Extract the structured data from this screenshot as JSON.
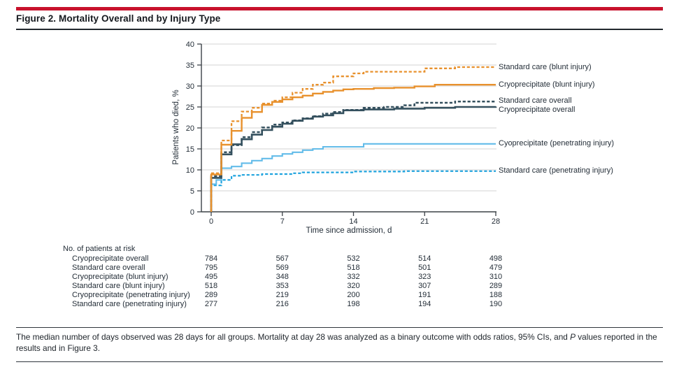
{
  "figure": {
    "title": "Figure 2. Mortality Overall and by Injury Type"
  },
  "chart_data": {
    "type": "line",
    "step": true,
    "title": "",
    "xlabel": "Time since admission, d",
    "ylabel": "Patients who died, %",
    "xlim": [
      0,
      28
    ],
    "ylim": [
      0,
      40
    ],
    "xticks": [
      0,
      7,
      14,
      21,
      28
    ],
    "yticks": [
      0,
      5,
      10,
      15,
      20,
      25,
      30,
      35,
      40
    ],
    "grid": "horizontal",
    "legend_position": "right-of-line-ends",
    "series": [
      {
        "name": "Standard care (blunt injury)",
        "color": "#e8912d",
        "dash": true,
        "label_dy": 0,
        "points": [
          [
            0,
            9.2
          ],
          [
            1,
            17.0
          ],
          [
            2,
            21.6
          ],
          [
            3,
            23.9
          ],
          [
            4,
            24.8
          ],
          [
            5,
            25.8
          ],
          [
            6,
            26.5
          ],
          [
            7,
            27.3
          ],
          [
            8,
            28.4
          ],
          [
            9,
            29.3
          ],
          [
            10,
            30.3
          ],
          [
            11,
            30.8
          ],
          [
            12,
            32.3
          ],
          [
            14,
            33.0
          ],
          [
            15,
            33.4
          ],
          [
            21,
            34.2
          ],
          [
            24,
            34.5
          ],
          [
            28,
            34.5
          ]
        ]
      },
      {
        "name": "Cryoprecipitate (blunt injury)",
        "color": "#e8912d",
        "dash": false,
        "label_dy": 0,
        "points": [
          [
            0,
            8.9
          ],
          [
            1,
            16.0
          ],
          [
            2,
            19.3
          ],
          [
            3,
            22.4
          ],
          [
            4,
            23.8
          ],
          [
            5,
            25.5
          ],
          [
            6,
            26.2
          ],
          [
            7,
            26.8
          ],
          [
            8,
            27.3
          ],
          [
            9,
            27.7
          ],
          [
            10,
            28.2
          ],
          [
            11,
            28.6
          ],
          [
            12,
            28.9
          ],
          [
            13,
            29.2
          ],
          [
            14,
            29.3
          ],
          [
            16,
            29.5
          ],
          [
            18,
            29.6
          ],
          [
            20,
            29.9
          ],
          [
            22,
            30.3
          ],
          [
            28,
            30.3
          ]
        ]
      },
      {
        "name": "Standard care overall",
        "color": "#34505e",
        "dash": true,
        "label_dy": -1,
        "points": [
          [
            0,
            8.5
          ],
          [
            1,
            14.2
          ],
          [
            2,
            15.9
          ],
          [
            3,
            17.8
          ],
          [
            4,
            19.0
          ],
          [
            5,
            20.1
          ],
          [
            6,
            20.8
          ],
          [
            7,
            21.3
          ],
          [
            8,
            21.8
          ],
          [
            9,
            22.3
          ],
          [
            10,
            22.8
          ],
          [
            11,
            23.4
          ],
          [
            12,
            23.8
          ],
          [
            13,
            24.3
          ],
          [
            15,
            24.8
          ],
          [
            17,
            25.0
          ],
          [
            19,
            25.4
          ],
          [
            20,
            26.0
          ],
          [
            24,
            26.3
          ],
          [
            28,
            26.3
          ]
        ]
      },
      {
        "name": "Cryoprecipitate overall",
        "color": "#34505e",
        "dash": false,
        "label_dy": 5,
        "points": [
          [
            0,
            8.1
          ],
          [
            1,
            13.7
          ],
          [
            2,
            16.1
          ],
          [
            3,
            17.3
          ],
          [
            4,
            18.4
          ],
          [
            5,
            19.5
          ],
          [
            6,
            20.3
          ],
          [
            7,
            21.0
          ],
          [
            8,
            21.7
          ],
          [
            9,
            22.2
          ],
          [
            10,
            22.7
          ],
          [
            11,
            23.0
          ],
          [
            12,
            23.5
          ],
          [
            13,
            24.2
          ],
          [
            15,
            24.4
          ],
          [
            18,
            24.6
          ],
          [
            21,
            24.8
          ],
          [
            24,
            25.0
          ],
          [
            28,
            25.1
          ]
        ]
      },
      {
        "name": "Cyoprecipitate (penetrating injury)",
        "color": "#63bce9",
        "dash": false,
        "label_dy": 0,
        "points": [
          [
            0,
            6.6
          ],
          [
            0.5,
            7.6
          ],
          [
            1,
            10.4
          ],
          [
            2,
            10.8
          ],
          [
            3,
            11.6
          ],
          [
            4,
            12.2
          ],
          [
            5,
            12.7
          ],
          [
            6,
            13.3
          ],
          [
            7,
            13.8
          ],
          [
            8,
            14.2
          ],
          [
            9,
            14.7
          ],
          [
            10,
            15.0
          ],
          [
            11,
            15.5
          ],
          [
            15,
            16.2
          ],
          [
            28,
            16.2
          ]
        ]
      },
      {
        "name": "Standard care (penetrating injury)",
        "color": "#1fa3de",
        "dash": true,
        "label_dy": 0,
        "points": [
          [
            0,
            6.3
          ],
          [
            1,
            7.6
          ],
          [
            2,
            8.6
          ],
          [
            3,
            8.8
          ],
          [
            5,
            9.0
          ],
          [
            8,
            9.2
          ],
          [
            9,
            9.4
          ],
          [
            14,
            9.6
          ],
          [
            19,
            9.7
          ],
          [
            28,
            9.7
          ]
        ]
      }
    ]
  },
  "at_risk": {
    "title": "No. of patients at risk",
    "days": [
      0,
      7,
      14,
      21,
      28
    ],
    "rows": [
      {
        "label": "Cryoprecipitate overall",
        "values": [
          "784",
          "567",
          "532",
          "514",
          "498"
        ]
      },
      {
        "label": "Standard care overall",
        "values": [
          "795",
          "569",
          "518",
          "501",
          "479"
        ]
      },
      {
        "label": "Cryoprecipitate (blunt injury)",
        "values": [
          "495",
          "348",
          "332",
          "323",
          "310"
        ]
      },
      {
        "label": "Standard care (blunt injury)",
        "values": [
          "518",
          "353",
          "320",
          "307",
          "289"
        ]
      },
      {
        "label": "Cryoprecipitate (penetrating injury)",
        "values": [
          "289",
          "219",
          "200",
          "191",
          "188"
        ]
      },
      {
        "label": "Standard care (penetrating injury)",
        "values": [
          "277",
          "216",
          "198",
          "194",
          "190"
        ]
      }
    ]
  },
  "footnote": {
    "part1": "The median number of days observed was 28 days for all groups. Mortality at day 28 was analyzed as a binary outcome with odds ratios, 95% CIs, and ",
    "italic": "P",
    "part2": " values reported in the results and in Figure 3."
  },
  "colors": {
    "accent_bar": "#c8122c",
    "orange": "#e8912d",
    "navy": "#34505e",
    "light_blue": "#63bce9",
    "cyan": "#1fa3de",
    "grid": "#dcdcdc",
    "axis": "#3c4247",
    "text": "#242e38"
  }
}
